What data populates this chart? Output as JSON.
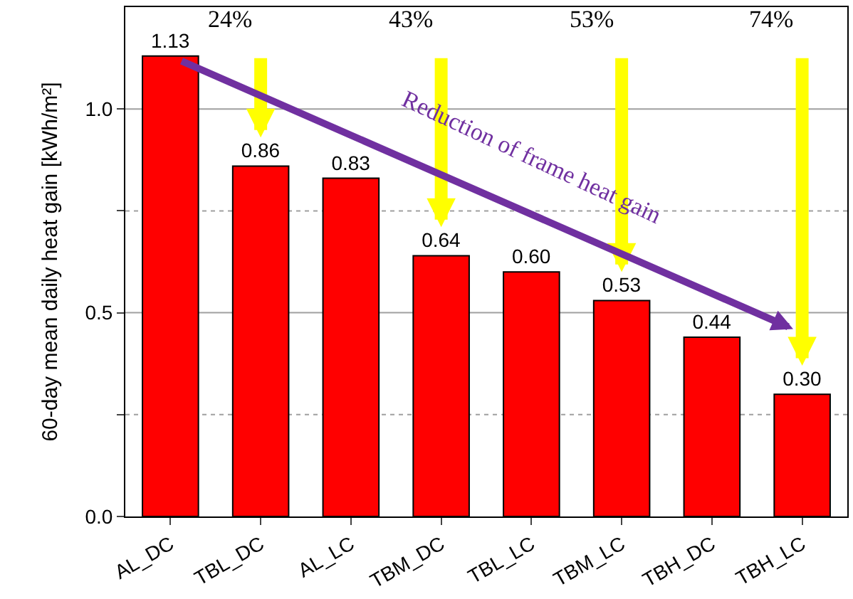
{
  "chart_data": {
    "type": "bar",
    "ylabel": "60-day mean daily heat gain [kWh/m²]",
    "categories": [
      "AL_DC",
      "TBL_DC",
      "AL_LC",
      "TBM_DC",
      "TBL_LC",
      "TBM_LC",
      "TBH_DC",
      "TBH_LC"
    ],
    "values": [
      1.13,
      0.86,
      0.83,
      0.64,
      0.6,
      0.53,
      0.44,
      0.3
    ],
    "color": "#ff0000",
    "value_labels": [
      "1.13",
      "0.86",
      "0.83",
      "0.64",
      "0.60",
      "0.53",
      "0.44",
      "0.30"
    ],
    "ylim": [
      0,
      1.25
    ],
    "yticks": [
      {
        "value": 0,
        "label": "0.0"
      },
      {
        "value": 0.25,
        "label": null
      },
      0.5,
      {
        "value": 0.75,
        "label": null
      },
      {
        "value": 1.0,
        "label": "1.0"
      }
    ],
    "grid": "y",
    "annotations": [
      "24%",
      "43%",
      "53%",
      "74%",
      "Reduction of frame heat gain"
    ]
  }
}
